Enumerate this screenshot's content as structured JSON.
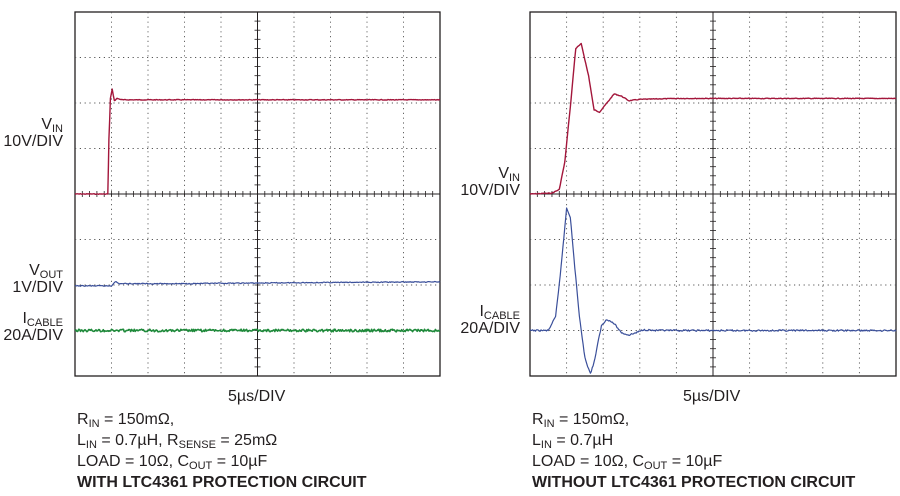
{
  "chart_data": [
    {
      "type": "line",
      "xlabel": "5µs/DIV",
      "series": [
        {
          "name": "VIN",
          "scale": "10V/DIV",
          "color": "#a3163b",
          "x": [
            0,
            0.9,
            0.93,
            0.97,
            1.02,
            1.08,
            1.15,
            1.3,
            2,
            4,
            6,
            8,
            10
          ],
          "y": [
            0,
            0,
            1.2,
            2.1,
            2.3,
            2.05,
            2.1,
            2.07,
            2.07,
            2.07,
            2.07,
            2.07,
            2.07
          ]
        },
        {
          "name": "VOUT",
          "scale": "1V/DIV",
          "color": "#3a4f9a",
          "x": [
            0,
            1,
            1.1,
            1.2,
            3,
            6,
            8,
            10
          ],
          "y": [
            0,
            0,
            0.1,
            0.05,
            0.05,
            0.07,
            0.08,
            0.09
          ]
        },
        {
          "name": "ICABLE",
          "scale": "20A/DIV",
          "color": "#1f8a3b",
          "x": [
            0,
            2,
            4,
            6,
            8,
            10
          ],
          "y": [
            0,
            0,
            0,
            0,
            0,
            0
          ]
        }
      ],
      "labels": [
        {
          "main": "V",
          "sub": "IN",
          "scale": "10V/DIV"
        },
        {
          "main": "V",
          "sub": "OUT",
          "scale": "1V/DIV"
        },
        {
          "main": "I",
          "sub": "CABLE",
          "scale": "20A/DIV"
        }
      ],
      "caption": {
        "line1": {
          "a": "R",
          "a_sub": "IN",
          "b": " = 150mΩ,"
        },
        "line2": {
          "a": "L",
          "a_sub": "IN",
          "b": " = 0.7µH, R",
          "b_sub": "SENSE",
          "c": " = 25mΩ"
        },
        "line3": {
          "a": "LOAD = 10Ω, C",
          "a_sub": "OUT",
          "b": " = 10µF"
        },
        "line4": "WITH LTC4361 PROTECTION CIRCUIT"
      }
    },
    {
      "type": "line",
      "xlabel": "5µs/DIV",
      "series": [
        {
          "name": "VIN",
          "scale": "10V/DIV",
          "color": "#a3163b",
          "x": [
            0,
            0.6,
            0.8,
            0.95,
            1.1,
            1.25,
            1.4,
            1.6,
            1.75,
            1.9,
            2.1,
            2.3,
            2.5,
            2.7,
            3,
            4,
            6,
            8,
            10
          ],
          "y": [
            0,
            0.02,
            0.1,
            0.7,
            1.9,
            3.2,
            3.3,
            2.6,
            1.85,
            1.8,
            2.0,
            2.2,
            2.15,
            2.05,
            2.08,
            2.1,
            2.1,
            2.1,
            2.1
          ]
        },
        {
          "name": "ICABLE",
          "scale": "20A/DIV",
          "color": "#3a4f9a",
          "x": [
            0,
            0.5,
            0.7,
            0.85,
            1.0,
            1.1,
            1.2,
            1.35,
            1.5,
            1.65,
            1.75,
            1.85,
            1.95,
            2.1,
            2.3,
            2.5,
            2.7,
            2.9,
            3.1,
            3.4,
            4,
            6,
            8,
            10
          ],
          "y": [
            0,
            0,
            0.3,
            1.4,
            2.7,
            2.5,
            1.6,
            0.3,
            -0.6,
            -0.95,
            -0.7,
            -0.3,
            0.1,
            0.25,
            0.15,
            -0.05,
            -0.1,
            -0.05,
            0.02,
            0,
            0,
            0,
            0,
            0
          ]
        }
      ],
      "labels": [
        {
          "main": "V",
          "sub": "IN",
          "scale": "10V/DIV"
        },
        {
          "main": "I",
          "sub": "CABLE",
          "scale": "20A/DIV"
        }
      ],
      "caption": {
        "line1": {
          "a": "R",
          "a_sub": "IN",
          "b": " = 150mΩ,"
        },
        "line2": {
          "a": "L",
          "a_sub": "IN",
          "b": " = 0.7µH"
        },
        "line3": {
          "a": "LOAD = 10Ω, C",
          "a_sub": "OUT",
          "b": " = 10µF"
        },
        "line4": "WITHOUT LTC4361 PROTECTION CIRCUIT"
      }
    }
  ]
}
